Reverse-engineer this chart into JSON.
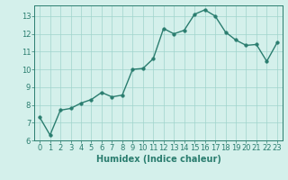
{
  "x": [
    0,
    1,
    2,
    3,
    4,
    5,
    6,
    7,
    8,
    9,
    10,
    11,
    12,
    13,
    14,
    15,
    16,
    17,
    18,
    19,
    20,
    21,
    22,
    23
  ],
  "y": [
    7.3,
    6.3,
    7.7,
    7.8,
    8.1,
    8.3,
    8.7,
    8.45,
    8.55,
    10.0,
    10.05,
    10.6,
    12.3,
    12.0,
    12.2,
    13.1,
    13.35,
    13.0,
    12.1,
    11.65,
    11.35,
    11.4,
    10.45,
    11.5
  ],
  "xlabel": "Humidex (Indice chaleur)",
  "xlim_min": -0.5,
  "xlim_max": 23.5,
  "ylim_min": 6.0,
  "ylim_max": 13.6,
  "yticks": [
    6,
    7,
    8,
    9,
    10,
    11,
    12,
    13
  ],
  "xticks": [
    0,
    1,
    2,
    3,
    4,
    5,
    6,
    7,
    8,
    9,
    10,
    11,
    12,
    13,
    14,
    15,
    16,
    17,
    18,
    19,
    20,
    21,
    22,
    23
  ],
  "line_color": "#2a7d6f",
  "marker_size": 2.5,
  "line_width": 1.0,
  "bg_color": "#d4f0eb",
  "grid_color": "#a0d4cc",
  "xlabel_fontsize": 7,
  "tick_fontsize": 6
}
